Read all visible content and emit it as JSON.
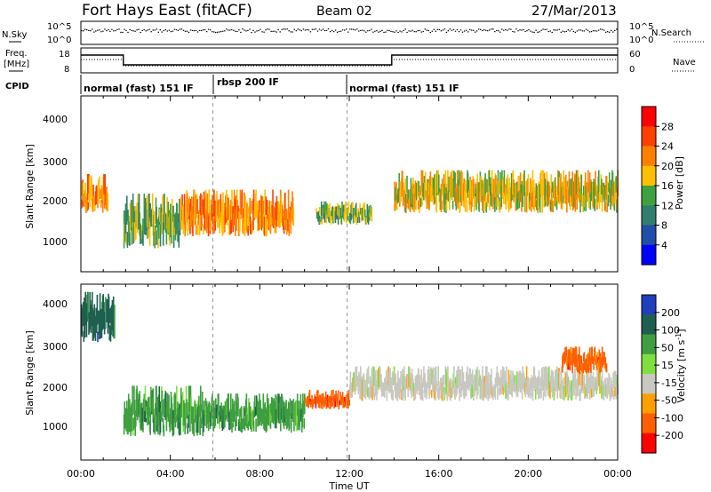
{
  "header": {
    "station": "Fort Hays East (fitACF)",
    "beam": "Beam 02",
    "date": "27/Mar/2013"
  },
  "noise_panel": {
    "left_label": "N.Sky",
    "right_label": "N.Search",
    "ticks_left": [
      "10^5",
      "10^0"
    ],
    "ticks_right": [
      "10^5",
      "10^0"
    ]
  },
  "freq_panel": {
    "left_label": "Freq.",
    "left_unit": "[MHz]",
    "right_label": "Nave",
    "ticks_left": [
      "18",
      "8"
    ],
    "ticks_right": [
      "60",
      "0"
    ]
  },
  "cpid": {
    "label": "CPID",
    "modes": [
      "normal (fast) 151 IF",
      "rbsp 200 IF",
      "normal (fast) 151 IF"
    ]
  },
  "power_panel": {
    "ylabel": "Slant Range [km]",
    "yticks": [
      "4000",
      "3000",
      "2000",
      "1000"
    ],
    "colorbar_label": "Power [dB]",
    "colorbar_ticks": [
      "28",
      "24",
      "20",
      "16",
      "12",
      "8",
      "4"
    ],
    "colors": [
      "#0000ff",
      "#1f4fa8",
      "#2f7f6f",
      "#3fa040",
      "#ffbf00",
      "#ff8000",
      "#ff4000",
      "#ff0000"
    ]
  },
  "velocity_panel": {
    "ylabel": "Slant Range [km]",
    "yticks": [
      "4000",
      "3000",
      "2000",
      "1000"
    ],
    "colorbar_label": "Velocity [m s",
    "colorbar_label_sup": "-1",
    "colorbar_label_end": "]",
    "colorbar_ticks": [
      "200",
      "100",
      "50",
      "15",
      "-15",
      "-50",
      "-100",
      "-200"
    ],
    "colors": [
      "#1f3fbf",
      "#1f5f4f",
      "#3f9f3f",
      "#7fdf3f",
      "#c8c8c0",
      "#ff9f00",
      "#ff5f00",
      "#ff0000"
    ]
  },
  "xaxis": {
    "label": "Time UT",
    "ticks": [
      "00:00",
      "04:00",
      "08:00",
      "12:00",
      "16:00",
      "20:00",
      "00:00"
    ]
  },
  "chart_data": {
    "type": "heatmap",
    "title": "Fort Hays East (fitACF) Beam 02 27/Mar/2013",
    "xlabel": "Time UT",
    "ylabel": "Slant Range [km]",
    "xlim_hours": [
      0,
      24
    ],
    "ylim_km": [
      0,
      4500
    ],
    "cpid_segments": [
      {
        "mode": "normal (fast) 151 IF",
        "start_h": 0,
        "end_h": 5.9
      },
      {
        "mode": "rbsp 200 IF",
        "start_h": 5.9,
        "end_h": 11.9
      },
      {
        "mode": "normal (fast) 151 IF",
        "start_h": 11.9,
        "end_h": 24
      }
    ],
    "freq_steps": [
      {
        "start_h": 0,
        "end_h": 1.9,
        "level": "high"
      },
      {
        "start_h": 1.9,
        "end_h": 11.9,
        "level": "low"
      },
      {
        "start_h": 11.9,
        "end_h": 13.9,
        "level": "low"
      },
      {
        "start_h": 13.9,
        "end_h": 24,
        "level": "high"
      }
    ],
    "power_echo_regions": [
      {
        "t0": 0.0,
        "t1": 1.2,
        "r0": 1500,
        "r1": 2500,
        "power_dB": 22
      },
      {
        "t0": 1.9,
        "t1": 4.5,
        "r0": 600,
        "r1": 2000,
        "power_dB": 14
      },
      {
        "t0": 4.5,
        "t1": 9.5,
        "r0": 900,
        "r1": 2100,
        "power_dB": 20
      },
      {
        "t0": 10.5,
        "t1": 13.0,
        "r0": 1200,
        "r1": 1800,
        "power_dB": 12
      },
      {
        "t0": 14.0,
        "t1": 24.0,
        "r0": 1500,
        "r1": 2600,
        "power_dB": 16
      }
    ],
    "velocity_echo_regions": [
      {
        "t0": 0.0,
        "t1": 1.5,
        "r0": 3000,
        "r1": 4300,
        "velocity": 150
      },
      {
        "t0": 1.9,
        "t1": 5.5,
        "r0": 600,
        "r1": 1900,
        "velocity": 60
      },
      {
        "t0": 5.5,
        "t1": 10.0,
        "r0": 700,
        "r1": 1700,
        "velocity": 40
      },
      {
        "t0": 10.0,
        "t1": 12.0,
        "r0": 1300,
        "r1": 1800,
        "velocity": -60
      },
      {
        "t0": 12.0,
        "t1": 24.0,
        "r0": 1500,
        "r1": 2400,
        "velocity": 0
      },
      {
        "t0": 21.5,
        "t1": 23.5,
        "r0": 2200,
        "r1": 2900,
        "velocity": -80
      }
    ]
  }
}
